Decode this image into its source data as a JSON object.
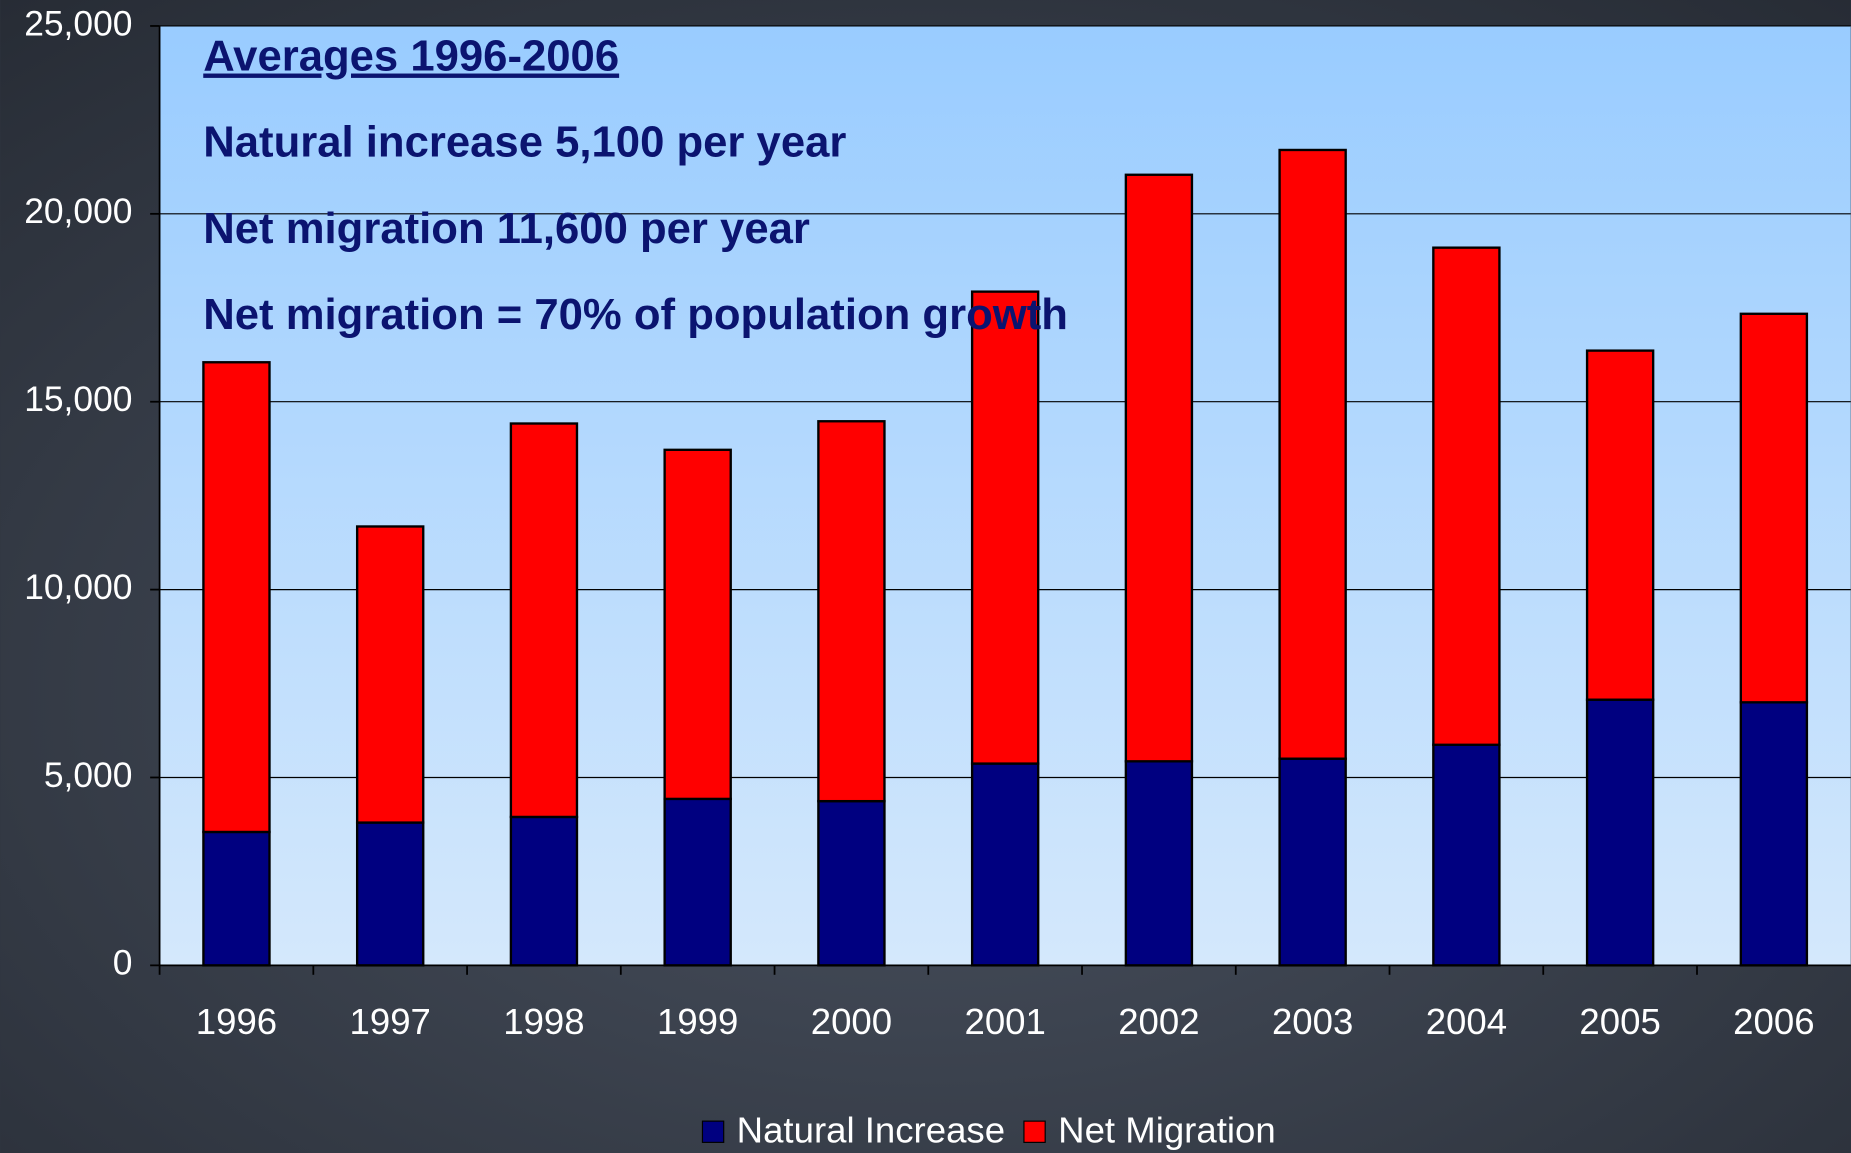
{
  "chart_data": {
    "type": "stacked_bar",
    "annotations": [
      "Averages 1996-2006",
      "Natural increase 5,100 per year",
      "Net migration 11,600 per year",
      "Net migration = 70% of population growth"
    ],
    "categories": [
      "1996",
      "1997",
      "1998",
      "1999",
      "2000",
      "2001",
      "2002",
      "2003",
      "2004",
      "2005",
      "2006"
    ],
    "series": [
      {
        "name": "Natural Increase",
        "color": "#000080",
        "values": [
          3550,
          3800,
          3950,
          4430,
          4370,
          5370,
          5430,
          5500,
          5870,
          7070,
          7000
        ]
      },
      {
        "name": "Net Migration",
        "color": "#ff0000",
        "values": [
          12500,
          7880,
          10470,
          9290,
          10110,
          12560,
          15610,
          16200,
          13230,
          9290,
          10340
        ]
      }
    ],
    "ylim": [
      0,
      25000
    ],
    "yticks": [
      0,
      {
        "value": 5000,
        "label": "5,000"
      },
      {
        "value": 10000,
        "label": "10,000"
      },
      {
        "value": 15000,
        "label": "15,000"
      },
      {
        "value": 20000,
        "label": "20,000"
      },
      {
        "value": 25000,
        "label": "25,000"
      }
    ],
    "grid": true,
    "legend": "bottom"
  }
}
